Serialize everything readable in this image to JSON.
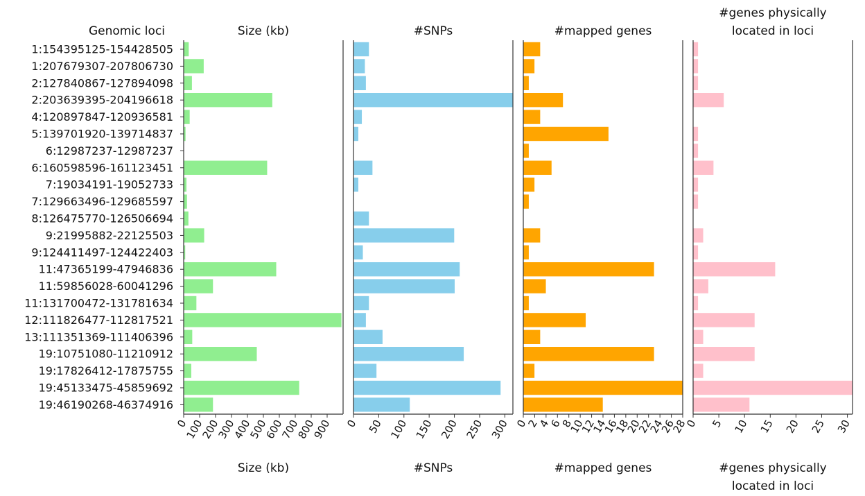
{
  "chart_data": {
    "type": "bar",
    "orientation": "horizontal",
    "loci_header": "Genomic loci",
    "categories": [
      "1:154395125-154428505",
      "1:207679307-207806730",
      "2:127840867-127894098",
      "2:203639395-204196618",
      "4:120897847-120936581",
      "5:139701920-139714837",
      "6:12987237-12987237",
      "6:160598596-161123451",
      "7:19034191-19052733",
      "7:129663496-129685597",
      "8:126475770-126506694",
      "9:21995882-22125503",
      "9:124411497-124422403",
      "11:47365199-47946836",
      "11:59856028-60041296",
      "11:131700472-131781634",
      "12:111826477-112817521",
      "13:111351369-111406396",
      "19:10751080-11210912",
      "19:17826412-17875755",
      "19:45133475-45859692",
      "19:46190268-46374916"
    ],
    "panels": [
      {
        "name": "Size (kb)",
        "title_lines": [
          "Size (kb)"
        ],
        "xlabel_lines": [
          "Size (kb)"
        ],
        "color": "#90ee90",
        "xlim": [
          0,
          1000
        ],
        "ticks": [
          0,
          100,
          200,
          300,
          400,
          500,
          600,
          700,
          800,
          900
        ],
        "values": [
          33,
          127,
          53,
          557,
          39,
          13,
          0,
          525,
          19,
          22,
          31,
          130,
          11,
          582,
          185,
          81,
          991,
          55,
          460,
          49,
          726,
          185
        ]
      },
      {
        "name": "#SNPs",
        "title_lines": [
          "#SNPs"
        ],
        "xlabel_lines": [
          "#SNPs"
        ],
        "color": "#87ceeb",
        "xlim": [
          0,
          316
        ],
        "ticks": [
          0,
          50,
          100,
          150,
          200,
          250,
          300
        ],
        "values": [
          31,
          23,
          25,
          318,
          17,
          10,
          0,
          38,
          10,
          0,
          31,
          200,
          19,
          211,
          201,
          31,
          25,
          58,
          219,
          46,
          292,
          112
        ]
      },
      {
        "name": "#mapped genes",
        "title_lines": [
          "#mapped genes"
        ],
        "xlabel_lines": [
          "#mapped genes"
        ],
        "color": "#ffa500",
        "xlim": [
          0,
          28
        ],
        "ticks": [
          0,
          2,
          4,
          6,
          8,
          10,
          12,
          14,
          16,
          18,
          20,
          22,
          24,
          26,
          28
        ],
        "values": [
          3,
          2,
          1,
          7,
          3,
          15,
          1,
          5,
          2,
          1,
          0,
          3,
          1,
          23,
          4,
          1,
          11,
          3,
          23,
          2,
          28,
          14
        ]
      },
      {
        "name": "#genes physically located in loci",
        "title_lines": [
          "#genes physically",
          "located in loci"
        ],
        "xlabel_lines": [
          "#genes physically",
          "located in loci"
        ],
        "color": "#ffc0cb",
        "xlim": [
          0,
          31
        ],
        "ticks": [
          0,
          5,
          10,
          15,
          20,
          25,
          30
        ],
        "values": [
          1,
          1,
          1,
          6,
          0,
          1,
          1,
          4,
          1,
          1,
          0,
          2,
          1,
          16,
          3,
          1,
          12,
          2,
          12,
          2,
          31,
          11
        ]
      }
    ]
  }
}
